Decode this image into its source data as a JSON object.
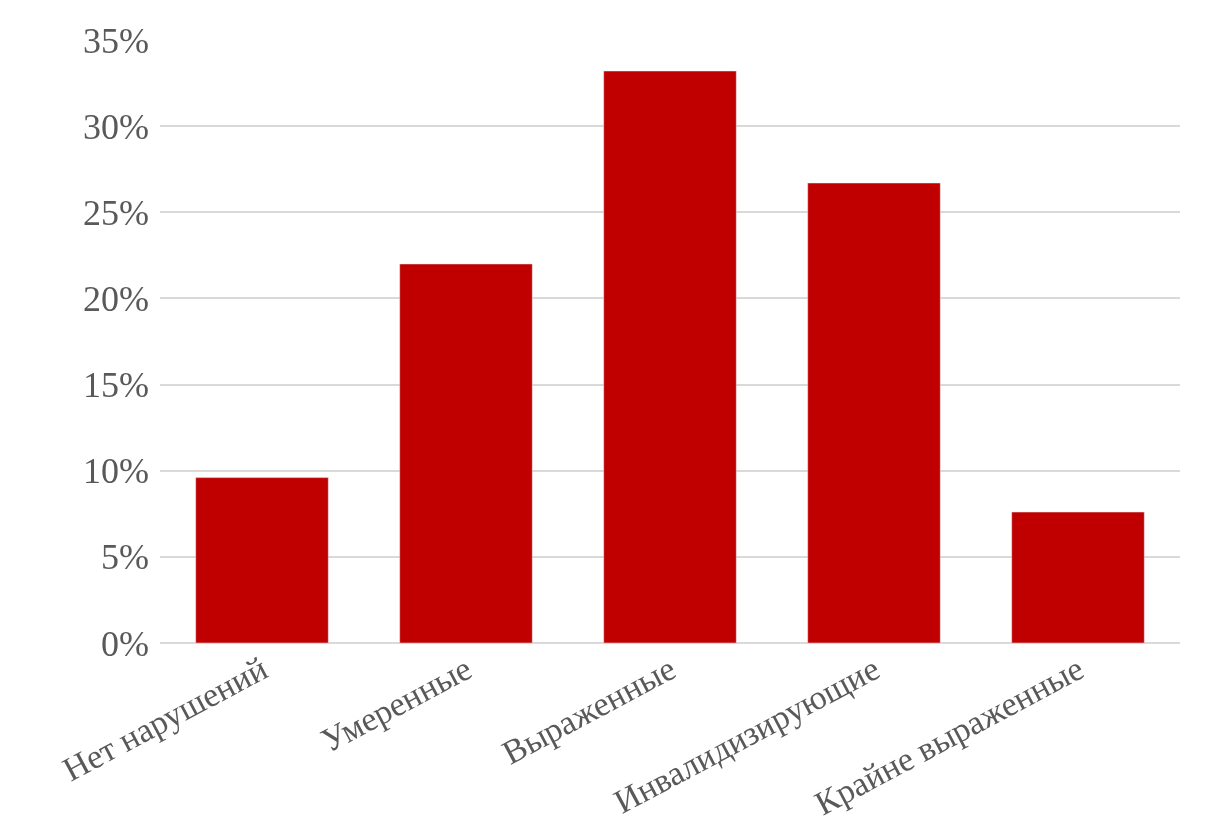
{
  "chart_data": {
    "type": "bar",
    "categories": [
      "Нет нарушений",
      "Умеренные",
      "Выраженные",
      "Инвалидизирующие",
      "Крайне выраженные"
    ],
    "values": [
      9.6,
      22.0,
      33.2,
      26.7,
      7.6
    ],
    "color": "#c00000",
    "ylim": [
      0,
      35
    ],
    "yticks": [
      {
        "value": 0,
        "label": "0%"
      },
      {
        "value": 5,
        "label": "5%"
      },
      {
        "value": 10,
        "label": "10%"
      },
      {
        "value": 15,
        "label": "15%"
      },
      {
        "value": 20,
        "label": "20%"
      },
      {
        "value": 25,
        "label": "25%"
      },
      {
        "value": 30,
        "label": "30%"
      },
      {
        "value": 35,
        "label": "35%"
      }
    ],
    "grid": "y",
    "legend": false
  }
}
